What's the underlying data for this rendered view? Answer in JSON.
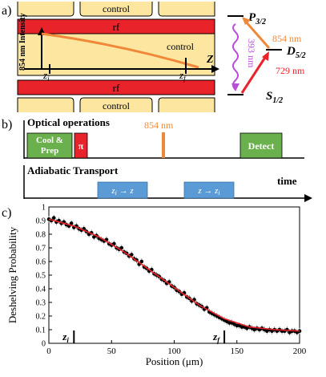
{
  "panel_a": {
    "label": "a)",
    "electrode_labels": [
      "control",
      "control",
      "control"
    ],
    "rf_top": "rf",
    "rf_bottom": "rf",
    "control_mid": "control",
    "intensity_label": "854 nm Intensity",
    "z_axis": "Z",
    "zi": "z",
    "zi_sub": "i",
    "zf": "z",
    "zf_sub": "f",
    "levels": {
      "p": "P",
      "p_sub": "3/2",
      "d": "D",
      "d_sub": "5/2",
      "s": "S",
      "s_sub": "1/2"
    },
    "transitions": {
      "uv": "393 nm",
      "repump": "854 nm",
      "qubit": "729 nm"
    },
    "colors": {
      "electrode": "#fde7a0",
      "rf": "#e8232a",
      "beam": "#f0883a",
      "uv": "#b84fd9",
      "qubit": "#e8232a"
    }
  },
  "panel_b": {
    "label": "b)",
    "optical_title": "Optical operations",
    "cool_prep_1": "Cool &",
    "cool_prep_2": "Prep",
    "pi": "π",
    "repump": "854 nm",
    "detect": "Detect",
    "transport_title": "Adiabatic Transport",
    "time_label": "time",
    "fwd": "z",
    "fwd_sub": "i",
    "fwd_to": " → z",
    "back": "z → z",
    "back_sub": "i",
    "colors": {
      "cool": "#6ab04c",
      "pi": "#e8232a",
      "repump": "#f0883a",
      "transport": "#5b9bd5"
    }
  },
  "panel_c": {
    "label": "c)"
  },
  "chart_data": {
    "type": "scatter",
    "xlabel": "Position (μm)",
    "ylabel": "Deshelving Probability",
    "xlim": [
      0,
      200
    ],
    "ylim": [
      0,
      1
    ],
    "xticks": [
      "0",
      "50",
      "100",
      "150",
      "200"
    ],
    "yticks": [
      "0",
      "0.1",
      "0.2",
      "0.3",
      "0.4",
      "0.5",
      "0.6",
      "0.7",
      "0.8",
      "0.9",
      "1"
    ],
    "markers": [
      {
        "x": 20,
        "label": "z",
        "sub": "i"
      },
      {
        "x": 140,
        "label": "z",
        "sub": "f"
      }
    ],
    "point_color": "#000000",
    "fit_color": "#e8232a",
    "x": [
      0,
      2,
      4,
      6,
      8,
      10,
      12,
      14,
      16,
      18,
      20,
      22,
      24,
      26,
      28,
      30,
      32,
      34,
      36,
      38,
      40,
      42,
      44,
      46,
      48,
      50,
      52,
      54,
      56,
      58,
      60,
      62,
      64,
      66,
      68,
      70,
      72,
      74,
      76,
      78,
      80,
      82,
      84,
      86,
      88,
      90,
      92,
      94,
      96,
      98,
      100,
      102,
      104,
      106,
      108,
      110,
      112,
      114,
      116,
      118,
      120,
      122,
      124,
      126,
      128,
      130,
      132,
      134,
      136,
      138,
      140,
      142,
      144,
      146,
      148,
      150,
      152,
      154,
      156,
      158,
      160,
      162,
      164,
      166,
      168,
      170,
      172,
      174,
      176,
      178,
      180,
      182,
      184,
      186,
      188,
      190,
      192,
      194,
      196,
      198,
      200
    ],
    "y": [
      0.91,
      0.9,
      0.92,
      0.89,
      0.9,
      0.88,
      0.89,
      0.87,
      0.86,
      0.88,
      0.85,
      0.86,
      0.84,
      0.83,
      0.84,
      0.82,
      0.8,
      0.81,
      0.78,
      0.79,
      0.77,
      0.76,
      0.75,
      0.76,
      0.73,
      0.72,
      0.73,
      0.7,
      0.69,
      0.7,
      0.67,
      0.66,
      0.64,
      0.65,
      0.62,
      0.61,
      0.58,
      0.6,
      0.56,
      0.55,
      0.53,
      0.54,
      0.51,
      0.5,
      0.49,
      0.47,
      0.46,
      0.44,
      0.45,
      0.42,
      0.41,
      0.39,
      0.38,
      0.36,
      0.37,
      0.34,
      0.33,
      0.31,
      0.32,
      0.29,
      0.28,
      0.27,
      0.25,
      0.26,
      0.23,
      0.22,
      0.21,
      0.2,
      0.19,
      0.18,
      0.17,
      0.16,
      0.15,
      0.15,
      0.14,
      0.13,
      0.13,
      0.12,
      0.12,
      0.11,
      0.12,
      0.11,
      0.1,
      0.11,
      0.1,
      0.11,
      0.1,
      0.09,
      0.1,
      0.09,
      0.1,
      0.09,
      0.1,
      0.09,
      0.09,
      0.1,
      0.08,
      0.09,
      0.09,
      0.08,
      0.09
    ],
    "fit_x": [
      0,
      20,
      40,
      60,
      80,
      100,
      120,
      140,
      160,
      180,
      200
    ],
    "fit_y": [
      0.91,
      0.86,
      0.78,
      0.67,
      0.54,
      0.41,
      0.28,
      0.18,
      0.12,
      0.1,
      0.09
    ]
  }
}
